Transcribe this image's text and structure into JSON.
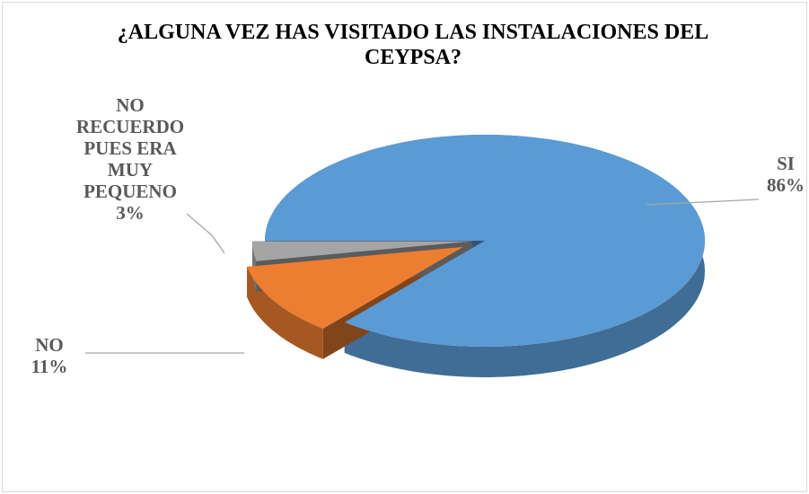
{
  "chart_data": {
    "type": "pie",
    "title": "¿ALGUNA VEZ HAS VISITADO LAS INSTALACIONES DEL CEYPSA?",
    "categories": [
      "SI",
      "NO",
      "NO RECUERDO PUES ERA MUY PEQUENO"
    ],
    "values": [
      86,
      11,
      3
    ],
    "value_labels": [
      "86%",
      "11%",
      "3%"
    ],
    "colors": [
      "#5b9bd5",
      "#ed7d31",
      "#a5a5a5"
    ]
  }
}
